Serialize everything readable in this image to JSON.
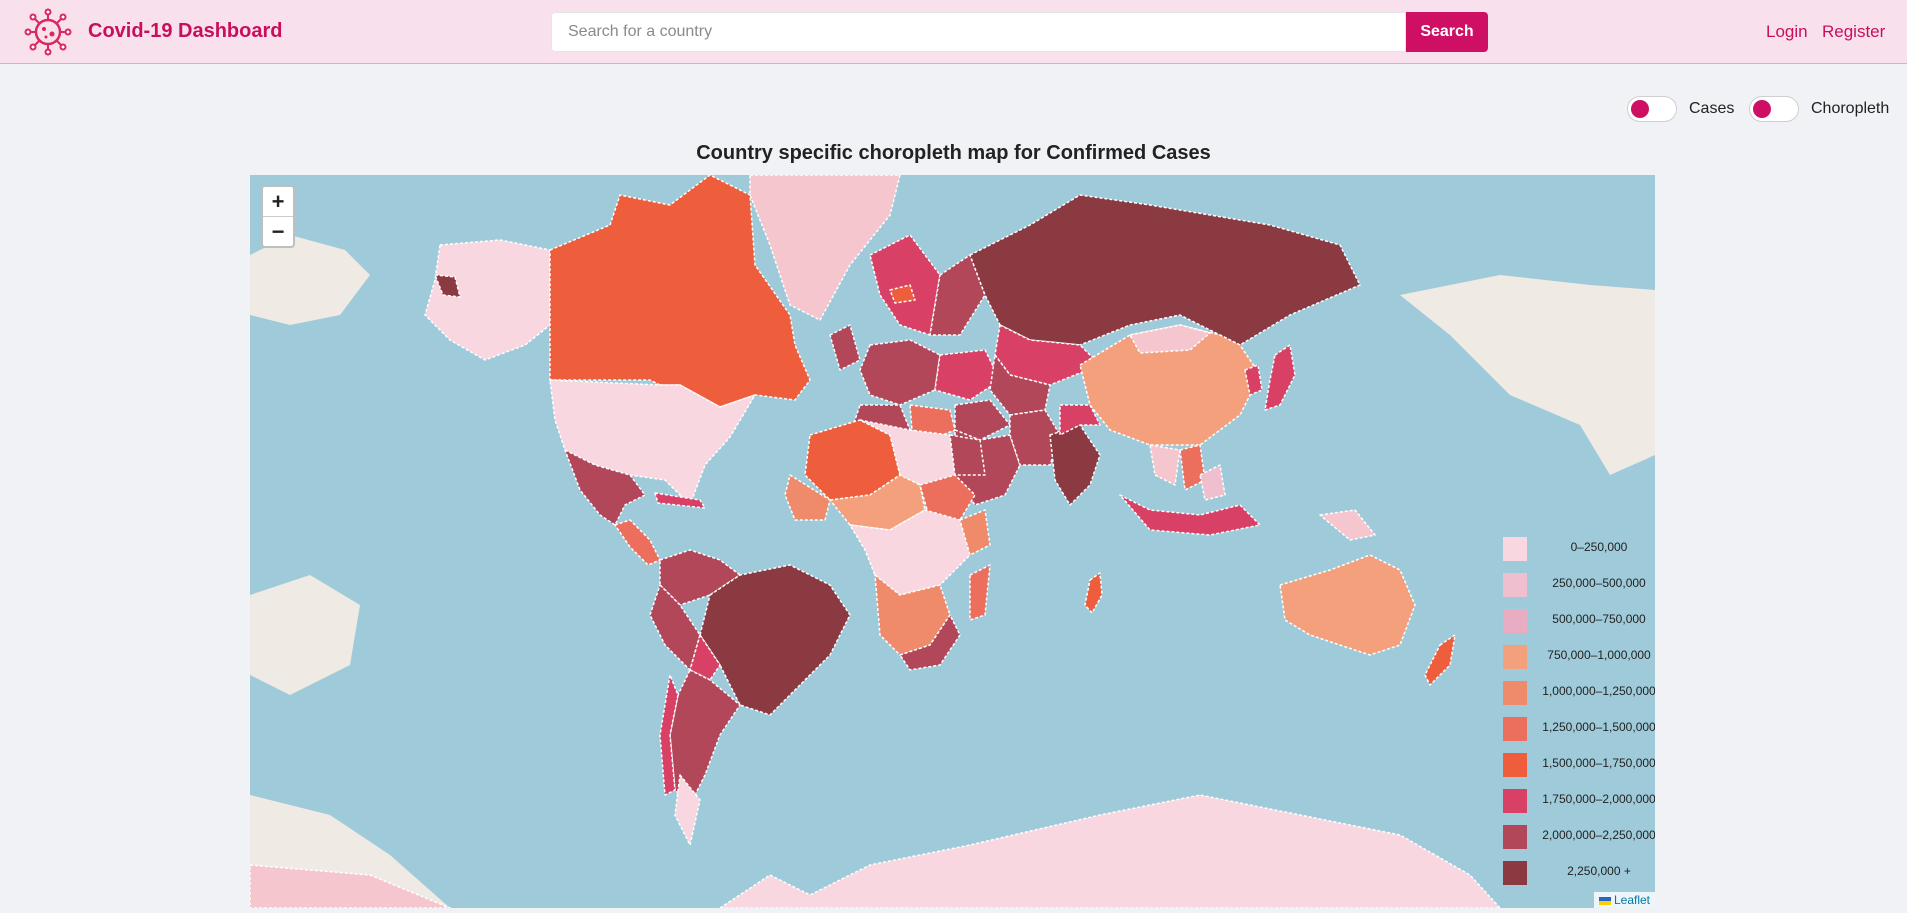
{
  "header": {
    "brand": "Covid-19 Dashboard",
    "search_placeholder": "Search for a country",
    "search_value": "",
    "search_button": "Search",
    "login": "Login",
    "register": "Register",
    "logo_icon": "virus-icon"
  },
  "toggles": {
    "cases_label": "Cases",
    "choropleth_label": "Choropleth"
  },
  "map": {
    "title": "Country specific choropleth map for Confirmed Cases",
    "zoom_in": "+",
    "zoom_out": "−",
    "attribution": "Leaflet",
    "legend": [
      {
        "label": "0–250,000",
        "color": "#f8d7e0"
      },
      {
        "label": "250,000–500,000",
        "color": "#efbfd0"
      },
      {
        "label": "500,000–750,000",
        "color": "#e8adc2"
      },
      {
        "label": "750,000–1,000,000",
        "color": "#f4a07c"
      },
      {
        "label": "1,000,000–1,250,000",
        "color": "#ef8a6a"
      },
      {
        "label": "1,250,000–1,500,000",
        "color": "#ec6f5e"
      },
      {
        "label": "1,500,000–1,750,000",
        "color": "#ee5d3c"
      },
      {
        "label": "1,750,000–2,000,000",
        "color": "#d84065"
      },
      {
        "label": "2,000,000–2,250,000",
        "color": "#b2475a"
      },
      {
        "label": "2,250,000 +",
        "color": "#8b3a42"
      }
    ]
  }
}
